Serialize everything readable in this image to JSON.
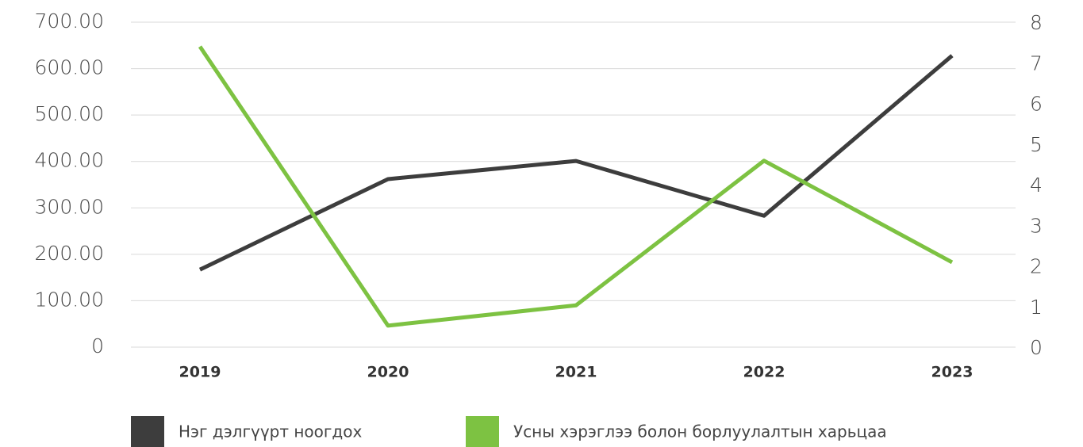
{
  "chart_data": {
    "type": "line",
    "categories": [
      "2019",
      "2020",
      "2021",
      "2022",
      "2023"
    ],
    "series": [
      {
        "name": "Нэг дэлгүүрт ноогдох",
        "color": "#3d3d3d",
        "values": [
          167,
          362,
          401,
          283,
          628
        ]
      },
      {
        "name": "Усны хэрэглээ болон борлуулалтын харьцаа",
        "color": "#7dc242",
        "axis": "y2",
        "values": [
          7.4,
          0.53,
          1.03,
          4.59,
          2.09
        ]
      }
    ],
    "ylim": [
      0,
      700
    ],
    "yticks": [
      0,
      {
        "value": 100,
        "label": "100.00"
      },
      {
        "value": 200,
        "label": "200.00"
      },
      {
        "value": 300,
        "label": "300.00"
      },
      {
        "value": 400,
        "label": "400.00"
      },
      {
        "value": 500,
        "label": "500.00"
      },
      {
        "value": 600,
        "label": "600.00"
      },
      {
        "value": 700,
        "label": "700.00"
      }
    ],
    "y2lim": [
      0,
      8
    ],
    "y2ticks": [
      0,
      1,
      2,
      3,
      4,
      5,
      6,
      7,
      8
    ],
    "grid": true
  }
}
